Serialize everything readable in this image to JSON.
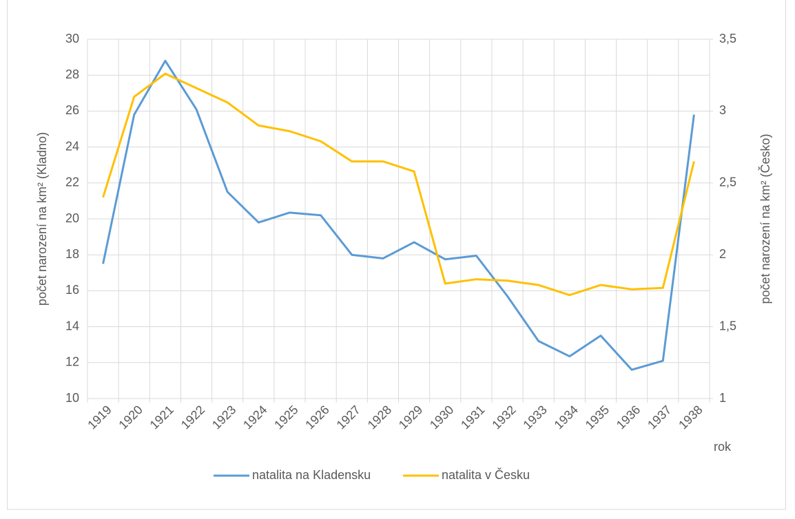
{
  "chart_data": {
    "type": "line",
    "categories": [
      "1919",
      "1920",
      "1921",
      "1922",
      "1923",
      "1924",
      "1925",
      "1926",
      "1927",
      "1928",
      "1929",
      "1930",
      "1931",
      "1932",
      "1933",
      "1934",
      "1935",
      "1936",
      "1937",
      "1938"
    ],
    "xlabel": "rok",
    "ylabel": "počet narození na km² (Kladno)",
    "y2label": "počet narození na km² (Česko)",
    "ylim": [
      10,
      30
    ],
    "yticks": [
      10,
      12,
      14,
      16,
      18,
      20,
      22,
      24,
      26,
      28,
      30
    ],
    "y2lim": [
      1,
      3.5
    ],
    "y2ticks": [
      1,
      {
        "value": 1.5,
        "label": "1,5"
      },
      2,
      {
        "value": 2.5,
        "label": "2,5"
      },
      3,
      {
        "value": 3.5,
        "label": "3,5"
      }
    ],
    "grid": true,
    "legend": "bottom",
    "series": [
      {
        "name": "natalita na Kladensku",
        "color": "#5b9bd5",
        "axis": "y",
        "values": [
          17.5,
          25.8,
          28.8,
          26.1,
          21.5,
          19.8,
          20.35,
          20.2,
          18.0,
          17.8,
          18.7,
          17.75,
          17.95,
          15.7,
          13.2,
          12.35,
          13.5,
          11.6,
          12.1,
          25.8
        ]
      },
      {
        "name": "natalita v Česku",
        "color": "#ffc000",
        "axis": "y2",
        "values": [
          2.4,
          3.1,
          3.26,
          3.16,
          3.06,
          2.9,
          2.86,
          2.79,
          2.65,
          2.65,
          2.58,
          1.8,
          1.83,
          1.82,
          1.79,
          1.72,
          1.79,
          1.76,
          1.77,
          2.65
        ]
      }
    ]
  }
}
